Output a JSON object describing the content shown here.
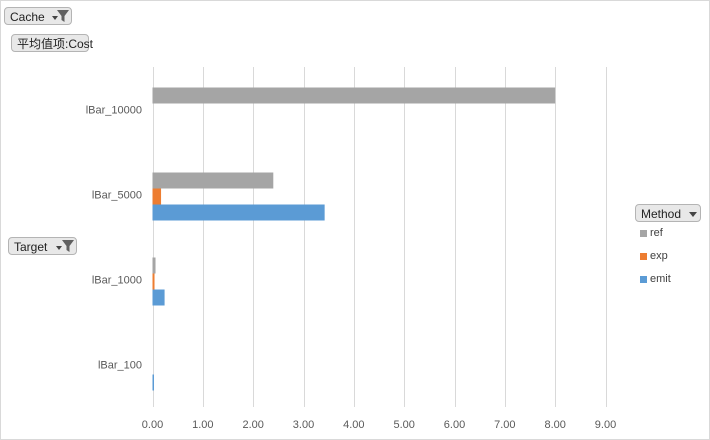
{
  "filters": {
    "cache_label": "Cache",
    "value_label": "平均值项:Cost",
    "target_label": "Target",
    "method_label": "Method"
  },
  "legend": [
    {
      "label": "ref",
      "color": "#a5a5a5"
    },
    {
      "label": "exp",
      "color": "#ed7d31"
    },
    {
      "label": "emit",
      "color": "#5b9bd5"
    }
  ],
  "chart_data": {
    "type": "bar",
    "orientation": "horizontal",
    "categories": [
      "lBar_10000",
      "lBar_5000",
      "lBar_1000",
      "lBar_100"
    ],
    "series": [
      {
        "name": "ref",
        "color": "#a5a5a5",
        "values": [
          8.0,
          2.4,
          0.06,
          0
        ]
      },
      {
        "name": "exp",
        "color": "#ed7d31",
        "values": [
          0,
          0.17,
          0.04,
          0
        ]
      },
      {
        "name": "emit",
        "color": "#5b9bd5",
        "values": [
          0,
          3.42,
          0.24,
          0.02
        ]
      }
    ],
    "xlim": [
      0,
      9
    ],
    "x_ticks": [
      "0.00",
      "1.00",
      "2.00",
      "3.00",
      "4.00",
      "5.00",
      "6.00",
      "7.00",
      "8.00",
      "9.00"
    ],
    "grid": true,
    "legend_position": "right"
  }
}
